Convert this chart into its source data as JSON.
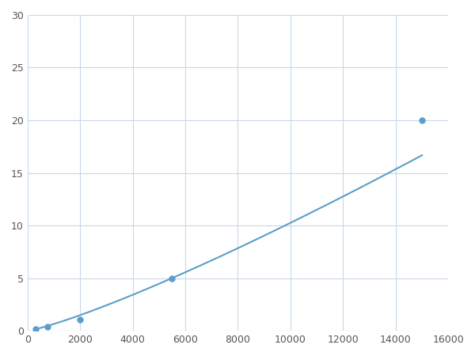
{
  "x": [
    300,
    750,
    2000,
    5500,
    15000
  ],
  "y": [
    0.2,
    0.4,
    1.1,
    5.0,
    20.0
  ],
  "line_color": "#5B9EC9",
  "marker_color": "#5B9EC9",
  "marker_size": 5,
  "line_width": 1.5,
  "xlim": [
    0,
    16000
  ],
  "ylim": [
    0,
    30
  ],
  "xticks": [
    0,
    2000,
    4000,
    6000,
    8000,
    10000,
    12000,
    14000,
    16000
  ],
  "yticks": [
    0,
    5,
    10,
    15,
    20,
    25,
    30
  ],
  "grid_color": "#C8D8E8",
  "background_color": "#FFFFFF",
  "figsize": [
    6.0,
    4.5
  ],
  "dpi": 100
}
